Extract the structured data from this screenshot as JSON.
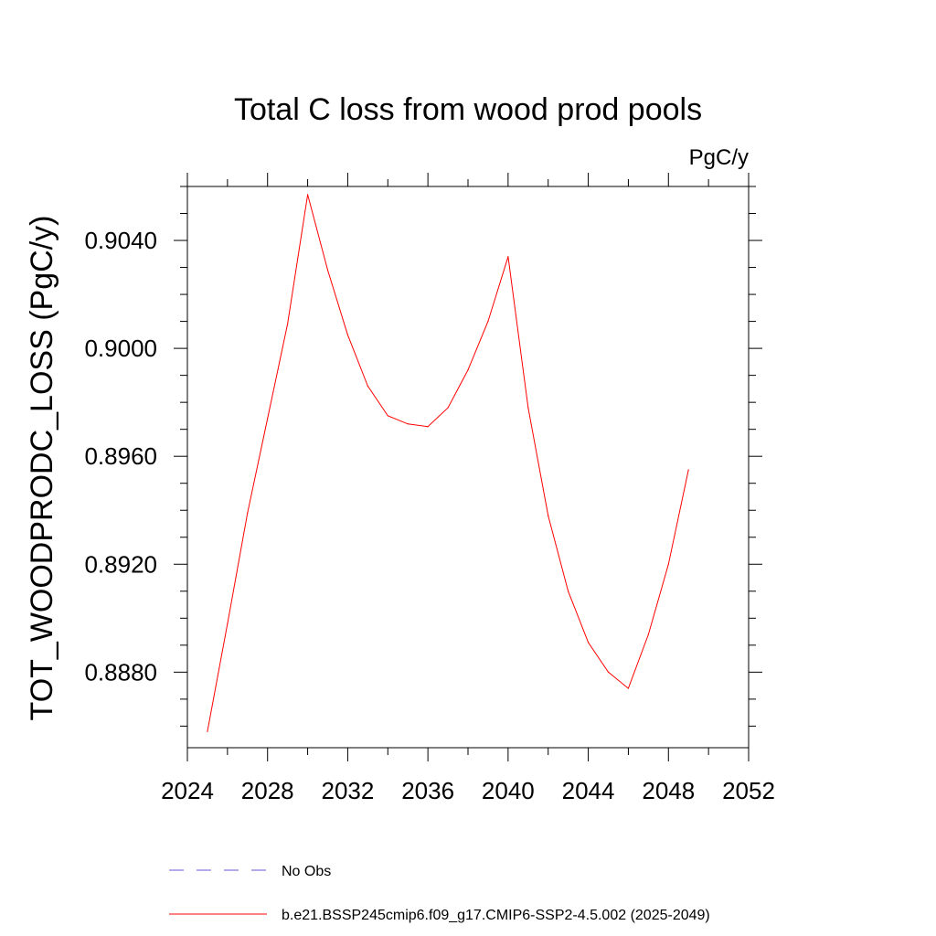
{
  "chart_data": {
    "type": "line",
    "title": "Total C loss from wood prod pools",
    "units": "PgC/y",
    "ylabel": "TOT_WOODPRODC_LOSS  (PgC/y)",
    "xlabel": "",
    "xlim": [
      2024,
      2052
    ],
    "ylim": [
      0.8852,
      0.906
    ],
    "x_ticks": [
      2024,
      2028,
      2032,
      2036,
      2040,
      2044,
      2048,
      2052
    ],
    "y_ticks": [
      0.888,
      0.892,
      0.896,
      0.9,
      0.904
    ],
    "x_tick_labels": [
      "2024",
      "2028",
      "2032",
      "2036",
      "2040",
      "2044",
      "2048",
      "2052"
    ],
    "y_tick_labels": [
      "0.8880",
      "0.8920",
      "0.8960",
      "0.9000",
      "0.9040"
    ],
    "grid": false,
    "legend_position": "bottom",
    "series": [
      {
        "name": "b.e21.BSSP245cmip6.f09_g17.CMIP6-SSP2-4.5.002 (2025-2049)",
        "color": "#ff0000",
        "dash": "solid",
        "x": [
          2025,
          2026,
          2027,
          2028,
          2029,
          2030,
          2031,
          2032,
          2033,
          2034,
          2035,
          2036,
          2037,
          2038,
          2039,
          2040,
          2041,
          2042,
          2043,
          2044,
          2045,
          2046,
          2047,
          2048,
          2049
        ],
        "y": [
          0.8858,
          0.8898,
          0.8939,
          0.8974,
          0.9009,
          0.9057,
          0.9029,
          0.9005,
          0.8986,
          0.8975,
          0.8972,
          0.8971,
          0.8978,
          0.8992,
          0.901,
          0.9034,
          0.8978,
          0.8938,
          0.891,
          0.8891,
          0.888,
          0.8874,
          0.8894,
          0.892,
          0.8955
        ]
      }
    ],
    "legend": [
      {
        "label": "No Obs",
        "color": "#6a5acd",
        "dash": "dashed"
      },
      {
        "label": "b.e21.BSSP245cmip6.f09_g17.CMIP6-SSP2-4.5.002 (2025-2049)",
        "color": "#ff0000",
        "dash": "solid"
      }
    ]
  }
}
